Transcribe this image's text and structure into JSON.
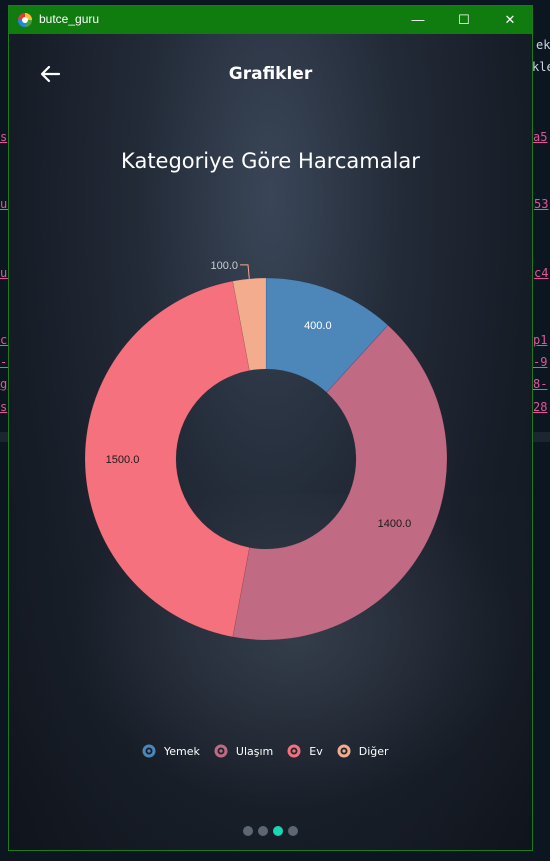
{
  "background": {
    "terminal_fragments": [
      "ek",
      "kle",
      "s",
      "a5",
      "ub",
      "53",
      "ub",
      "c4",
      "ch",
      "p1",
      "-t",
      "-9",
      "g",
      "8-",
      "s",
      "28"
    ]
  },
  "window": {
    "title": "butce_guru",
    "controls": {
      "minimize": "—",
      "maximize": "☐",
      "close": "✕"
    }
  },
  "header": {
    "title": "Grafikler"
  },
  "chart_data": {
    "type": "pie",
    "variant": "donut",
    "title": "Kategoriye Göre Harcamalar",
    "categories": [
      "Yemek",
      "Ulaşım",
      "Ev",
      "Diğer"
    ],
    "values": [
      400,
      1400,
      1500,
      100
    ],
    "labels": [
      "400.0",
      "1400.0",
      "1500.0",
      "100.0"
    ],
    "colors": [
      "#4d86b8",
      "#c06a84",
      "#f5717d",
      "#f4ac8f"
    ],
    "legend_position": "bottom"
  },
  "pager": {
    "count": 4,
    "active": 2
  }
}
